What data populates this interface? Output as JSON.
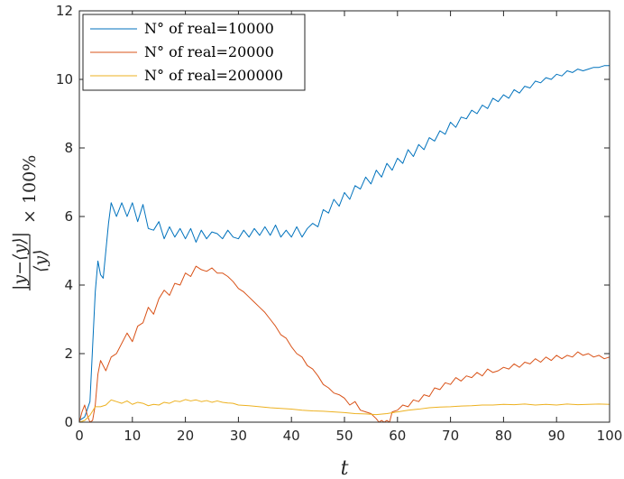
{
  "chart_data": {
    "type": "line",
    "xlabel": "t",
    "ylabel": "|y−⟨y⟩| / ⟨y⟩ × 100%",
    "xlim": [
      0,
      100
    ],
    "ylim": [
      0,
      12
    ],
    "xticks": [
      0,
      10,
      20,
      30,
      40,
      50,
      60,
      70,
      80,
      90,
      100
    ],
    "yticks": [
      0,
      2,
      4,
      6,
      8,
      10,
      12
    ],
    "legend_position": "top-left",
    "grid": false,
    "series": [
      {
        "name": "N° of real=10000",
        "color": "#0072BD",
        "x": [
          0,
          1,
          2,
          2.5,
          3,
          3.5,
          4,
          4.5,
          5,
          5.5,
          6,
          7,
          8,
          9,
          10,
          11,
          12,
          13,
          14,
          15,
          16,
          17,
          18,
          19,
          20,
          21,
          22,
          23,
          24,
          25,
          26,
          27,
          28,
          29,
          30,
          31,
          32,
          33,
          34,
          35,
          36,
          37,
          38,
          39,
          40,
          41,
          42,
          43,
          44,
          45,
          46,
          47,
          48,
          49,
          50,
          51,
          52,
          53,
          54,
          55,
          56,
          57,
          58,
          59,
          60,
          61,
          62,
          63,
          64,
          65,
          66,
          67,
          68,
          69,
          70,
          71,
          72,
          73,
          74,
          75,
          76,
          77,
          78,
          79,
          80,
          81,
          82,
          83,
          84,
          85,
          86,
          87,
          88,
          89,
          90,
          91,
          92,
          93,
          94,
          95,
          96,
          97,
          98,
          99,
          100
        ],
        "y": [
          0.05,
          0.15,
          0.6,
          2.2,
          3.8,
          4.7,
          4.3,
          4.2,
          5.0,
          5.8,
          6.4,
          6.0,
          6.4,
          6.0,
          6.4,
          5.85,
          6.35,
          5.65,
          5.6,
          5.85,
          5.35,
          5.7,
          5.4,
          5.65,
          5.35,
          5.65,
          5.25,
          5.6,
          5.35,
          5.55,
          5.5,
          5.35,
          5.6,
          5.4,
          5.35,
          5.6,
          5.4,
          5.65,
          5.45,
          5.7,
          5.45,
          5.75,
          5.4,
          5.6,
          5.4,
          5.7,
          5.4,
          5.65,
          5.8,
          5.7,
          6.2,
          6.1,
          6.5,
          6.3,
          6.7,
          6.5,
          6.9,
          6.8,
          7.15,
          6.95,
          7.35,
          7.15,
          7.55,
          7.35,
          7.7,
          7.55,
          7.95,
          7.75,
          8.1,
          7.95,
          8.3,
          8.2,
          8.5,
          8.4,
          8.75,
          8.6,
          8.9,
          8.85,
          9.1,
          9.0,
          9.25,
          9.15,
          9.45,
          9.35,
          9.55,
          9.45,
          9.7,
          9.6,
          9.8,
          9.75,
          9.95,
          9.9,
          10.05,
          10.0,
          10.15,
          10.1,
          10.25,
          10.2,
          10.3,
          10.25,
          10.3,
          10.35,
          10.35,
          10.4,
          10.4
        ]
      },
      {
        "name": "N° of real=20000",
        "color": "#D95319",
        "x": [
          0,
          0.5,
          1,
          1.5,
          2,
          2.5,
          3,
          3.5,
          4,
          5,
          6,
          7,
          8,
          9,
          10,
          11,
          12,
          13,
          14,
          15,
          16,
          17,
          18,
          19,
          20,
          21,
          22,
          23,
          24,
          25,
          26,
          27,
          28,
          29,
          30,
          31,
          32,
          33,
          34,
          35,
          36,
          37,
          38,
          39,
          40,
          41,
          42,
          43,
          44,
          45,
          46,
          47,
          48,
          49,
          50,
          51,
          52,
          53,
          54,
          55,
          56,
          56.5,
          57,
          57.5,
          58,
          58.5,
          59,
          60,
          61,
          62,
          63,
          64,
          65,
          66,
          67,
          68,
          69,
          70,
          71,
          72,
          73,
          74,
          75,
          76,
          77,
          78,
          79,
          80,
          81,
          82,
          83,
          84,
          85,
          86,
          87,
          88,
          89,
          90,
          91,
          92,
          93,
          94,
          95,
          96,
          97,
          98,
          99,
          100
        ],
        "y": [
          0.0,
          0.3,
          0.5,
          0.2,
          0.0,
          0.05,
          0.5,
          1.4,
          1.8,
          1.5,
          1.9,
          2.0,
          2.3,
          2.6,
          2.35,
          2.8,
          2.9,
          3.35,
          3.15,
          3.6,
          3.85,
          3.7,
          4.05,
          4.0,
          4.35,
          4.25,
          4.55,
          4.45,
          4.4,
          4.5,
          4.35,
          4.35,
          4.25,
          4.1,
          3.9,
          3.8,
          3.65,
          3.5,
          3.35,
          3.2,
          3.0,
          2.8,
          2.55,
          2.45,
          2.2,
          2.0,
          1.9,
          1.65,
          1.55,
          1.35,
          1.1,
          1.0,
          0.85,
          0.8,
          0.7,
          0.5,
          0.6,
          0.35,
          0.3,
          0.25,
          0.1,
          0.0,
          0.05,
          0.0,
          0.05,
          0.0,
          0.3,
          0.35,
          0.5,
          0.45,
          0.65,
          0.6,
          0.8,
          0.75,
          1.0,
          0.95,
          1.15,
          1.1,
          1.3,
          1.2,
          1.35,
          1.3,
          1.45,
          1.35,
          1.55,
          1.45,
          1.5,
          1.6,
          1.55,
          1.7,
          1.6,
          1.75,
          1.7,
          1.85,
          1.75,
          1.9,
          1.8,
          1.95,
          1.85,
          1.95,
          1.9,
          2.05,
          1.95,
          2.0,
          1.9,
          1.95,
          1.85,
          1.9
        ]
      },
      {
        "name": "N° of real=200000",
        "color": "#EDB120",
        "x": [
          0,
          1,
          2,
          3,
          4,
          5,
          6,
          7,
          8,
          9,
          10,
          11,
          12,
          13,
          14,
          15,
          16,
          17,
          18,
          19,
          20,
          21,
          22,
          23,
          24,
          25,
          26,
          27,
          28,
          29,
          30,
          32,
          34,
          36,
          38,
          40,
          42,
          44,
          46,
          48,
          50,
          52,
          54,
          56,
          58,
          60,
          62,
          64,
          66,
          68,
          70,
          72,
          74,
          76,
          78,
          80,
          82,
          84,
          86,
          88,
          90,
          92,
          94,
          96,
          98,
          100
        ],
        "y": [
          0.0,
          0.05,
          0.2,
          0.45,
          0.45,
          0.5,
          0.65,
          0.6,
          0.55,
          0.62,
          0.52,
          0.58,
          0.55,
          0.48,
          0.52,
          0.5,
          0.58,
          0.55,
          0.62,
          0.6,
          0.66,
          0.62,
          0.65,
          0.6,
          0.63,
          0.58,
          0.62,
          0.58,
          0.56,
          0.55,
          0.5,
          0.48,
          0.45,
          0.42,
          0.4,
          0.38,
          0.35,
          0.33,
          0.32,
          0.3,
          0.28,
          0.25,
          0.24,
          0.22,
          0.25,
          0.3,
          0.35,
          0.38,
          0.42,
          0.44,
          0.45,
          0.47,
          0.48,
          0.5,
          0.5,
          0.52,
          0.51,
          0.53,
          0.5,
          0.52,
          0.5,
          0.53,
          0.51,
          0.52,
          0.53,
          0.52
        ]
      }
    ]
  }
}
